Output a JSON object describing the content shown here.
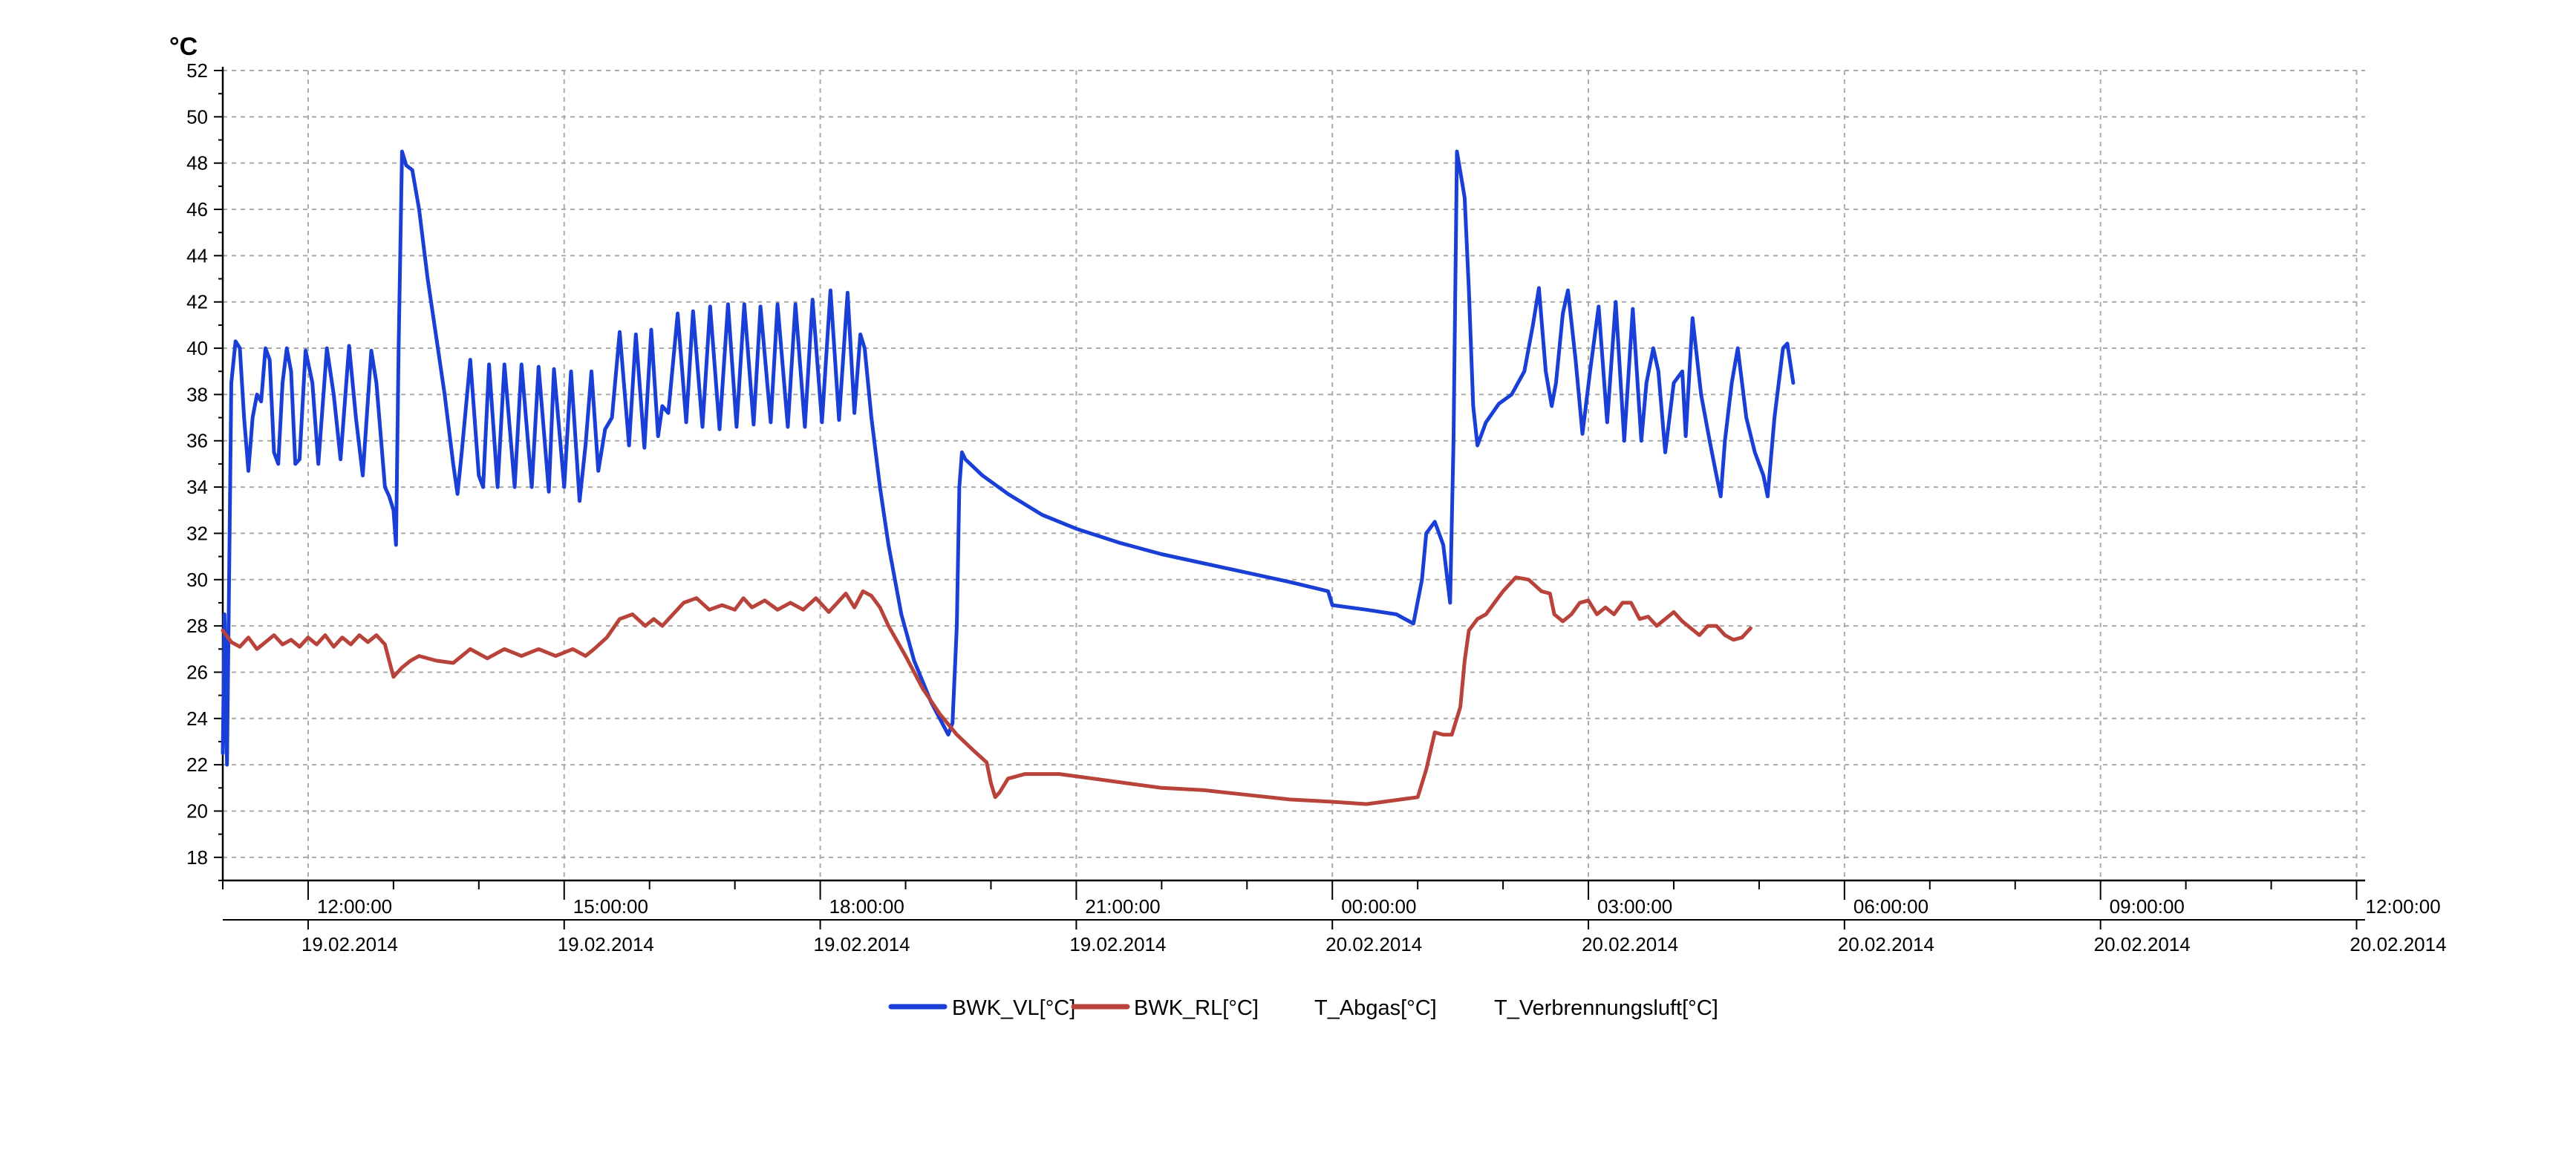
{
  "chart_data": {
    "type": "line",
    "ylabel": "°C",
    "ylim": [
      17,
      52
    ],
    "yticks": [
      18,
      20,
      22,
      24,
      26,
      28,
      30,
      32,
      34,
      36,
      38,
      40,
      42,
      44,
      46,
      48,
      50,
      52
    ],
    "xlim": [
      11.0,
      36.1
    ],
    "xlabel": "",
    "xticks": [
      {
        "t": 12,
        "time": "12:00:00",
        "date": "19.02.2014"
      },
      {
        "t": 15,
        "time": "15:00:00",
        "date": "19.02.2014"
      },
      {
        "t": 18,
        "time": "18:00:00",
        "date": "19.02.2014"
      },
      {
        "t": 21,
        "time": "21:00:00",
        "date": "19.02.2014"
      },
      {
        "t": 24,
        "time": "00:00:00",
        "date": "20.02.2014"
      },
      {
        "t": 27,
        "time": "03:00:00",
        "date": "20.02.2014"
      },
      {
        "t": 30,
        "time": "06:00:00",
        "date": "20.02.2014"
      },
      {
        "t": 33,
        "time": "09:00:00",
        "date": "20.02.2014"
      },
      {
        "t": 36,
        "time": "12:00:00",
        "date": "20.02.2014"
      }
    ],
    "grid": true,
    "legend_position": "bottom",
    "series": [
      {
        "name": "BWK_VL[°C]",
        "color": "#1a3fd6",
        "points": [
          [
            11.0,
            22.5
          ],
          [
            11.02,
            28.5
          ],
          [
            11.05,
            22.0
          ],
          [
            11.1,
            38.5
          ],
          [
            11.15,
            40.3
          ],
          [
            11.2,
            40.0
          ],
          [
            11.25,
            37.0
          ],
          [
            11.3,
            34.7
          ],
          [
            11.35,
            37.0
          ],
          [
            11.4,
            38.0
          ],
          [
            11.45,
            37.7
          ],
          [
            11.5,
            40.0
          ],
          [
            11.55,
            39.5
          ],
          [
            11.6,
            35.5
          ],
          [
            11.65,
            35.0
          ],
          [
            11.7,
            38.5
          ],
          [
            11.75,
            40.0
          ],
          [
            11.8,
            39.0
          ],
          [
            11.85,
            35.0
          ],
          [
            11.9,
            35.2
          ],
          [
            11.97,
            39.9
          ],
          [
            12.05,
            38.5
          ],
          [
            12.12,
            35.0
          ],
          [
            12.22,
            40.0
          ],
          [
            12.3,
            38.0
          ],
          [
            12.38,
            35.2
          ],
          [
            12.48,
            40.1
          ],
          [
            12.56,
            37.0
          ],
          [
            12.64,
            34.5
          ],
          [
            12.74,
            39.9
          ],
          [
            12.8,
            38.5
          ],
          [
            12.9,
            34.0
          ],
          [
            12.95,
            33.6
          ],
          [
            13.0,
            33.0
          ],
          [
            13.03,
            31.5
          ],
          [
            13.06,
            40.0
          ],
          [
            13.1,
            48.5
          ],
          [
            13.15,
            47.9
          ],
          [
            13.22,
            47.7
          ],
          [
            13.3,
            46.0
          ],
          [
            13.4,
            43.0
          ],
          [
            13.5,
            40.5
          ],
          [
            13.6,
            38.0
          ],
          [
            13.7,
            35.0
          ],
          [
            13.75,
            33.7
          ],
          [
            13.8,
            35.5
          ],
          [
            13.85,
            37.5
          ],
          [
            13.9,
            39.5
          ],
          [
            14.0,
            34.5
          ],
          [
            14.05,
            34.0
          ],
          [
            14.12,
            39.3
          ],
          [
            14.22,
            34.0
          ],
          [
            14.3,
            39.3
          ],
          [
            14.42,
            34.0
          ],
          [
            14.5,
            39.3
          ],
          [
            14.62,
            34.0
          ],
          [
            14.7,
            39.2
          ],
          [
            14.82,
            33.8
          ],
          [
            14.88,
            39.1
          ],
          [
            15.0,
            34.0
          ],
          [
            15.08,
            39.0
          ],
          [
            15.18,
            33.4
          ],
          [
            15.25,
            35.8
          ],
          [
            15.32,
            39.0
          ],
          [
            15.4,
            34.7
          ],
          [
            15.48,
            36.5
          ],
          [
            15.56,
            37.0
          ],
          [
            15.65,
            40.7
          ],
          [
            15.76,
            35.8
          ],
          [
            15.84,
            40.6
          ],
          [
            15.94,
            35.7
          ],
          [
            16.02,
            40.8
          ],
          [
            16.1,
            36.2
          ],
          [
            16.15,
            37.5
          ],
          [
            16.22,
            37.2
          ],
          [
            16.33,
            41.5
          ],
          [
            16.43,
            36.8
          ],
          [
            16.51,
            41.6
          ],
          [
            16.62,
            36.6
          ],
          [
            16.71,
            41.8
          ],
          [
            16.82,
            36.5
          ],
          [
            16.92,
            41.9
          ],
          [
            17.02,
            36.6
          ],
          [
            17.11,
            41.9
          ],
          [
            17.22,
            36.7
          ],
          [
            17.3,
            41.8
          ],
          [
            17.42,
            36.8
          ],
          [
            17.5,
            41.9
          ],
          [
            17.62,
            36.6
          ],
          [
            17.71,
            41.9
          ],
          [
            17.82,
            36.6
          ],
          [
            17.91,
            42.1
          ],
          [
            18.02,
            36.8
          ],
          [
            18.12,
            42.5
          ],
          [
            18.22,
            36.9
          ],
          [
            18.32,
            42.4
          ],
          [
            18.4,
            37.2
          ],
          [
            18.47,
            40.6
          ],
          [
            18.52,
            40.0
          ],
          [
            18.6,
            37.0
          ],
          [
            18.7,
            34.0
          ],
          [
            18.8,
            31.5
          ],
          [
            18.95,
            28.5
          ],
          [
            19.1,
            26.5
          ],
          [
            19.3,
            24.7
          ],
          [
            19.5,
            23.3
          ],
          [
            19.55,
            23.8
          ],
          [
            19.6,
            28.0
          ],
          [
            19.63,
            34.0
          ],
          [
            19.66,
            35.5
          ],
          [
            19.7,
            35.2
          ],
          [
            19.9,
            34.5
          ],
          [
            20.2,
            33.7
          ],
          [
            20.6,
            32.8
          ],
          [
            21.0,
            32.2
          ],
          [
            21.5,
            31.6
          ],
          [
            22.0,
            31.1
          ],
          [
            22.5,
            30.7
          ],
          [
            23.0,
            30.3
          ],
          [
            23.5,
            29.9
          ],
          [
            23.95,
            29.5
          ],
          [
            24.0,
            28.9
          ],
          [
            24.4,
            28.7
          ],
          [
            24.75,
            28.5
          ],
          [
            24.95,
            28.1
          ],
          [
            25.05,
            30.0
          ],
          [
            25.1,
            32.0
          ],
          [
            25.2,
            32.5
          ],
          [
            25.3,
            31.5
          ],
          [
            25.38,
            29.0
          ],
          [
            25.42,
            36.0
          ],
          [
            25.46,
            48.5
          ],
          [
            25.55,
            46.5
          ],
          [
            25.6,
            42.5
          ],
          [
            25.65,
            37.5
          ],
          [
            25.7,
            35.8
          ],
          [
            25.8,
            36.8
          ],
          [
            25.95,
            37.6
          ],
          [
            26.1,
            38.0
          ],
          [
            26.25,
            39.0
          ],
          [
            26.35,
            41.0
          ],
          [
            26.42,
            42.6
          ],
          [
            26.5,
            39.0
          ],
          [
            26.57,
            37.5
          ],
          [
            26.62,
            38.5
          ],
          [
            26.7,
            41.5
          ],
          [
            26.76,
            42.5
          ],
          [
            26.85,
            39.5
          ],
          [
            26.93,
            36.3
          ],
          [
            27.02,
            39.0
          ],
          [
            27.12,
            41.8
          ],
          [
            27.22,
            36.8
          ],
          [
            27.32,
            42.0
          ],
          [
            27.42,
            36.0
          ],
          [
            27.52,
            41.7
          ],
          [
            27.62,
            36.0
          ],
          [
            27.68,
            38.5
          ],
          [
            27.76,
            40.0
          ],
          [
            27.82,
            39.0
          ],
          [
            27.9,
            35.5
          ],
          [
            28.0,
            38.5
          ],
          [
            28.1,
            39.0
          ],
          [
            28.14,
            36.2
          ],
          [
            28.22,
            41.3
          ],
          [
            28.32,
            38.0
          ],
          [
            28.42,
            36.0
          ],
          [
            28.5,
            34.5
          ],
          [
            28.55,
            33.6
          ],
          [
            28.6,
            36.0
          ],
          [
            28.68,
            38.5
          ],
          [
            28.75,
            40.0
          ],
          [
            28.85,
            37.0
          ],
          [
            28.95,
            35.5
          ],
          [
            29.05,
            34.5
          ],
          [
            29.1,
            33.6
          ],
          [
            29.18,
            37.0
          ],
          [
            29.28,
            40.0
          ],
          [
            29.33,
            40.2
          ],
          [
            29.4,
            38.5
          ]
        ]
      },
      {
        "name": "BWK_RL[°C]",
        "color": "#b8433a",
        "points": [
          [
            11.0,
            27.8
          ],
          [
            11.1,
            27.3
          ],
          [
            11.2,
            27.1
          ],
          [
            11.3,
            27.5
          ],
          [
            11.4,
            27.0
          ],
          [
            11.5,
            27.3
          ],
          [
            11.6,
            27.6
          ],
          [
            11.7,
            27.2
          ],
          [
            11.8,
            27.4
          ],
          [
            11.9,
            27.1
          ],
          [
            12.0,
            27.5
          ],
          [
            12.1,
            27.2
          ],
          [
            12.2,
            27.6
          ],
          [
            12.3,
            27.1
          ],
          [
            12.4,
            27.5
          ],
          [
            12.5,
            27.2
          ],
          [
            12.6,
            27.6
          ],
          [
            12.7,
            27.3
          ],
          [
            12.8,
            27.6
          ],
          [
            12.9,
            27.2
          ],
          [
            12.95,
            26.5
          ],
          [
            13.0,
            25.8
          ],
          [
            13.1,
            26.2
          ],
          [
            13.2,
            26.5
          ],
          [
            13.3,
            26.7
          ],
          [
            13.5,
            26.5
          ],
          [
            13.7,
            26.4
          ],
          [
            13.9,
            27.0
          ],
          [
            14.1,
            26.6
          ],
          [
            14.3,
            27.0
          ],
          [
            14.5,
            26.7
          ],
          [
            14.7,
            27.0
          ],
          [
            14.9,
            26.7
          ],
          [
            15.1,
            27.0
          ],
          [
            15.25,
            26.7
          ],
          [
            15.35,
            27.0
          ],
          [
            15.5,
            27.5
          ],
          [
            15.65,
            28.3
          ],
          [
            15.8,
            28.5
          ],
          [
            15.95,
            28.0
          ],
          [
            16.05,
            28.3
          ],
          [
            16.15,
            28.0
          ],
          [
            16.25,
            28.4
          ],
          [
            16.4,
            29.0
          ],
          [
            16.55,
            29.2
          ],
          [
            16.7,
            28.7
          ],
          [
            16.85,
            28.9
          ],
          [
            17.0,
            28.7
          ],
          [
            17.1,
            29.2
          ],
          [
            17.2,
            28.8
          ],
          [
            17.35,
            29.1
          ],
          [
            17.5,
            28.7
          ],
          [
            17.65,
            29.0
          ],
          [
            17.8,
            28.7
          ],
          [
            17.95,
            29.2
          ],
          [
            18.1,
            28.6
          ],
          [
            18.2,
            29.0
          ],
          [
            18.3,
            29.4
          ],
          [
            18.4,
            28.8
          ],
          [
            18.5,
            29.5
          ],
          [
            18.6,
            29.3
          ],
          [
            18.7,
            28.8
          ],
          [
            18.8,
            28.0
          ],
          [
            19.0,
            26.7
          ],
          [
            19.2,
            25.3
          ],
          [
            19.4,
            24.2
          ],
          [
            19.6,
            23.3
          ],
          [
            19.8,
            22.6
          ],
          [
            19.95,
            22.1
          ],
          [
            20.0,
            21.2
          ],
          [
            20.05,
            20.6
          ],
          [
            20.1,
            20.8
          ],
          [
            20.2,
            21.4
          ],
          [
            20.4,
            21.6
          ],
          [
            20.8,
            21.6
          ],
          [
            21.2,
            21.4
          ],
          [
            21.6,
            21.2
          ],
          [
            22.0,
            21.0
          ],
          [
            22.5,
            20.9
          ],
          [
            23.0,
            20.7
          ],
          [
            23.5,
            20.5
          ],
          [
            24.0,
            20.4
          ],
          [
            24.4,
            20.3
          ],
          [
            24.8,
            20.5
          ],
          [
            25.0,
            20.6
          ],
          [
            25.1,
            21.8
          ],
          [
            25.2,
            23.4
          ],
          [
            25.3,
            23.3
          ],
          [
            25.4,
            23.3
          ],
          [
            25.5,
            24.5
          ],
          [
            25.55,
            26.5
          ],
          [
            25.6,
            27.8
          ],
          [
            25.7,
            28.3
          ],
          [
            25.8,
            28.5
          ],
          [
            25.9,
            29.0
          ],
          [
            26.0,
            29.5
          ],
          [
            26.15,
            30.1
          ],
          [
            26.3,
            30.0
          ],
          [
            26.45,
            29.5
          ],
          [
            26.55,
            29.4
          ],
          [
            26.6,
            28.5
          ],
          [
            26.7,
            28.2
          ],
          [
            26.8,
            28.5
          ],
          [
            26.9,
            29.0
          ],
          [
            27.0,
            29.1
          ],
          [
            27.1,
            28.5
          ],
          [
            27.2,
            28.8
          ],
          [
            27.3,
            28.5
          ],
          [
            27.4,
            29.0
          ],
          [
            27.5,
            29.0
          ],
          [
            27.6,
            28.3
          ],
          [
            27.7,
            28.4
          ],
          [
            27.8,
            28.0
          ],
          [
            27.9,
            28.3
          ],
          [
            28.0,
            28.6
          ],
          [
            28.1,
            28.2
          ],
          [
            28.2,
            27.9
          ],
          [
            28.3,
            27.6
          ],
          [
            28.4,
            28.0
          ],
          [
            28.5,
            28.0
          ],
          [
            28.6,
            27.6
          ],
          [
            28.7,
            27.4
          ],
          [
            28.8,
            27.5
          ],
          [
            28.9,
            27.9
          ]
        ]
      },
      {
        "name": "T_Abgas[°C]",
        "color": "",
        "points": []
      },
      {
        "name": "T_Verbrennungsluft[°C]",
        "color": "",
        "points": []
      }
    ]
  }
}
